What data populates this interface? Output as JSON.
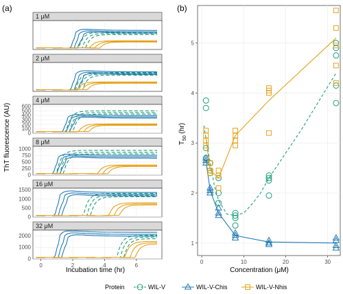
{
  "chart_data": [
    {
      "panel": "(a)",
      "type": "line",
      "xlabel": "Incubation time (hr)",
      "ylabel": "ThT fluorescence (AU)",
      "x_ticks": [
        "0",
        "2",
        "4",
        "6"
      ],
      "xlim": [
        -0.5,
        7.6
      ],
      "facets": [
        {
          "label": "1 μM",
          "ylim": [
            0,
            350
          ],
          "ticks": [],
          "rise": {
            "WIL-V": 2.6,
            "WIL-V-Chis": 2.1,
            "WIL-V-Nhis": 3.4
          },
          "plateau": {
            "WIL-V": 200,
            "WIL-V-Chis": 220,
            "WIL-V-Nhis": 100
          }
        },
        {
          "label": "2 μM",
          "ylim": [
            0,
            450
          ],
          "ticks": [],
          "rise": {
            "WIL-V": 2.4,
            "WIL-V-Chis": 2.1,
            "WIL-V-Nhis": 2.6
          },
          "plateau": {
            "WIL-V": 280,
            "WIL-V-Chis": 290,
            "WIL-V-Nhis": 140
          }
        },
        {
          "label": "4 μM",
          "ylim": [
            0,
            650
          ],
          "ticks": [
            "0",
            "100",
            "200",
            "300",
            "400",
            "500",
            "600"
          ],
          "rise": {
            "WIL-V": 1.8,
            "WIL-V-Chis": 1.6,
            "WIL-V-Nhis": 2.7
          },
          "plateau": {
            "WIL-V": 480,
            "WIL-V-Chis": 380,
            "WIL-V-Nhis": 200
          }
        },
        {
          "label": "8 μM",
          "ylim": [
            0,
            1100
          ],
          "ticks": [
            "0",
            "250",
            "500",
            "750",
            "1000"
          ],
          "rise": {
            "WIL-V": 1.2,
            "WIL-V-Chis": 1.0,
            "WIL-V-Nhis": 3.9
          },
          "plateau": {
            "WIL-V": 900,
            "WIL-V-Chis": 720,
            "WIL-V-Nhis": 370
          }
        },
        {
          "label": "16 μM",
          "ylim": [
            0,
            1600
          ],
          "ticks": [
            "0",
            "500",
            "1000",
            "1500"
          ],
          "rise": {
            "WIL-V": 2.9,
            "WIL-V-Chis": 1.1,
            "WIL-V-Nhis": 4.6
          },
          "plateau": {
            "WIL-V": 1250,
            "WIL-V-Chis": 1300,
            "WIL-V-Nhis": 750
          }
        },
        {
          "label": "32 μM",
          "ylim": [
            0,
            2500
          ],
          "ticks": [
            "0",
            "1000",
            "2000"
          ],
          "rise": {
            "WIL-V": 5.0,
            "WIL-V-Chis": 1.1,
            "WIL-V-Nhis": 5.6
          },
          "plateau": {
            "WIL-V": 1950,
            "WIL-V-Chis": 2200,
            "WIL-V-Nhis": 1450
          }
        }
      ]
    },
    {
      "panel": "(b)",
      "type": "scatter",
      "xlabel": "Concentration (μM)",
      "ylabel": "T",
      "ylabel_sub": "50",
      "ylabel_unit": " (hr)",
      "xlim": [
        -1,
        33
      ],
      "ylim": [
        0.75,
        5.75
      ],
      "x_ticks": [
        0,
        10,
        20,
        30
      ],
      "y_ticks": [
        1,
        2,
        3,
        4,
        5
      ],
      "series": [
        {
          "name": "WIL-V",
          "color": "#1b9e77",
          "marker": "circle",
          "line": "dashed",
          "points": [
            [
              1,
              3.85
            ],
            [
              1,
              3.7
            ],
            [
              1,
              2.9
            ],
            [
              1,
              2.7
            ],
            [
              2,
              2.6
            ],
            [
              2,
              2.45
            ],
            [
              2,
              2.4
            ],
            [
              4,
              2.3
            ],
            [
              4,
              2.0
            ],
            [
              4,
              1.8
            ],
            [
              8,
              1.6
            ],
            [
              8,
              1.55
            ],
            [
              8,
              1.5
            ],
            [
              8,
              1.35
            ],
            [
              16,
              2.35
            ],
            [
              16,
              2.3
            ],
            [
              16,
              2.25
            ],
            [
              16,
              1.95
            ],
            [
              32,
              5.0
            ],
            [
              32,
              4.9
            ],
            [
              32,
              4.75
            ],
            [
              32,
              4.15
            ],
            [
              32,
              3.8
            ]
          ],
          "fit": [
            [
              0.5,
              3.35
            ],
            [
              1,
              3.1
            ],
            [
              2,
              2.6
            ],
            [
              3,
              2.15
            ],
            [
              4,
              1.85
            ],
            [
              6,
              1.58
            ],
            [
              8,
              1.55
            ],
            [
              10,
              1.6
            ],
            [
              12,
              1.78
            ],
            [
              14,
              2.0
            ],
            [
              16,
              2.3
            ],
            [
              20,
              2.8
            ],
            [
              24,
              3.3
            ],
            [
              28,
              3.85
            ],
            [
              32,
              4.4
            ]
          ]
        },
        {
          "name": "WIL-V-Chis",
          "color": "#1f78b4",
          "marker": "triangle",
          "line": "solid",
          "points": [
            [
              1,
              2.7
            ],
            [
              1,
              2.65
            ],
            [
              1,
              2.6
            ],
            [
              2,
              2.1
            ],
            [
              2,
              2.05
            ],
            [
              2,
              2.0
            ],
            [
              4,
              1.7
            ],
            [
              4,
              1.6
            ],
            [
              4,
              1.55
            ],
            [
              8,
              1.2
            ],
            [
              8,
              1.15
            ],
            [
              8,
              1.1
            ],
            [
              16,
              1.05
            ],
            [
              16,
              1.0
            ],
            [
              16,
              0.97
            ],
            [
              32,
              1.1
            ],
            [
              32,
              1.05
            ],
            [
              32,
              0.95
            ],
            [
              32,
              0.9
            ]
          ],
          "fit": [
            [
              1,
              2.65
            ],
            [
              2,
              2.05
            ],
            [
              4,
              1.6
            ],
            [
              8,
              1.15
            ],
            [
              16,
              1.02
            ],
            [
              32,
              1.0
            ]
          ]
        },
        {
          "name": "WIL-V-Nhis",
          "color": "#e6a11a",
          "marker": "square",
          "line": "solid",
          "points": [
            [
              1,
              3.25
            ],
            [
              1,
              3.15
            ],
            [
              1,
              3.05
            ],
            [
              1,
              2.95
            ],
            [
              2,
              2.6
            ],
            [
              2,
              2.45
            ],
            [
              2,
              2.4
            ],
            [
              4,
              2.45
            ],
            [
              4,
              2.35
            ],
            [
              4,
              2.1
            ],
            [
              8,
              3.25
            ],
            [
              8,
              3.15
            ],
            [
              8,
              3.05
            ],
            [
              8,
              2.95
            ],
            [
              16,
              4.1
            ],
            [
              16,
              4.05
            ],
            [
              16,
              4.0
            ],
            [
              16,
              3.2
            ],
            [
              32,
              5.65
            ],
            [
              32,
              5.3
            ],
            [
              32,
              4.95
            ],
            [
              32,
              4.55
            ],
            [
              32,
              4.2
            ]
          ],
          "fit": [
            [
              1,
              3.1
            ],
            [
              2,
              2.45
            ],
            [
              4,
              2.3
            ],
            [
              8,
              3.15
            ],
            [
              16,
              3.85
            ],
            [
              32,
              5.1
            ]
          ]
        }
      ]
    }
  ],
  "panel_labels": {
    "a": "(a)",
    "b": "(b)"
  },
  "legend": {
    "title": "Protein",
    "items": [
      {
        "label": "WIL-V",
        "color": "#1b9e77",
        "marker": "circle",
        "line": "dashed"
      },
      {
        "label": "WIL-V-Chis",
        "color": "#1f78b4",
        "marker": "triangle",
        "line": "solid"
      },
      {
        "label": "WIL-V-Nhis",
        "color": "#e6a11a",
        "marker": "square",
        "line": "solid"
      }
    ]
  }
}
